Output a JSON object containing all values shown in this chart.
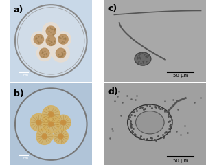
{
  "panels": [
    "a",
    "b",
    "c",
    "d"
  ],
  "panel_labels": [
    "a)",
    "b)",
    "c)",
    "d)"
  ],
  "label_fontsize": 9,
  "label_color": "black",
  "scale_bar_text_c": "50 μm",
  "scale_bar_text_d": "50 μm",
  "bg_a": "#c8d8e8",
  "bg_b": "#b0c4d8",
  "bg_c": "#a8a8a8",
  "bg_d": "#a0a0a0",
  "colony_colors_a": [
    "#c8a878",
    "#d4b888",
    "#b89060"
  ],
  "colony_colors_b": [
    "#c8a050",
    "#d4b060",
    "#b88840"
  ],
  "plate_color_a": "#d0dce8",
  "plate_color_b": "#b8cce0",
  "plate_rim_a": "#888888",
  "plate_rim_b": "#777777"
}
